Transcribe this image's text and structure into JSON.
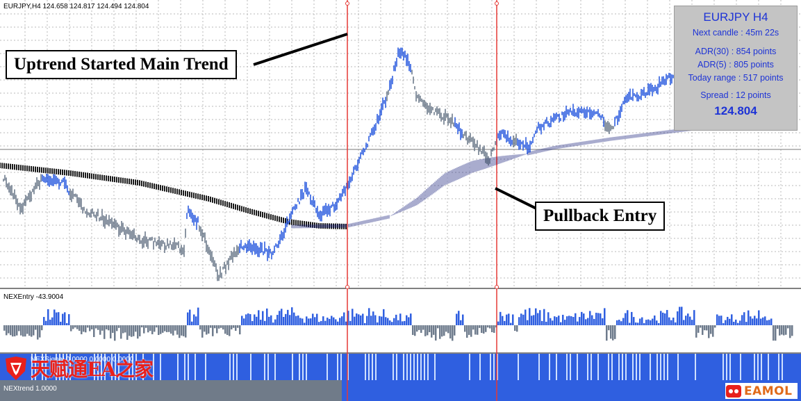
{
  "header": {
    "text": "EURJPY,H4  124.658 124.817 124.494 124.804"
  },
  "callouts": {
    "trend": "Uptrend Started Main Trend",
    "pullback": "Pullback Entry"
  },
  "info_panel": {
    "title": "EURJPY H4",
    "next_candle": "Next candle : 45m 22s",
    "adr30": "ADR(30) : 854 points",
    "adr5": "ADR(5) : 805 points",
    "today_range": "Today range : 517 points",
    "spread": "Spread : 12 points",
    "price": "124.804"
  },
  "subwindows": {
    "nexentry_label": "NEXEntry -43.9004",
    "nextrend_label": "NEXtrend  1.0000",
    "strip_label": "NEXSignal 0.0000 0.0000 0.0000"
  },
  "logos": {
    "cn_text": "天赋通EA之家",
    "en_text": "EAMOL"
  },
  "colors": {
    "bull": "#2f5fe0",
    "bear": "#6e7b8c",
    "signal_line": "#e53935",
    "ma_fast": "#1a1a1a",
    "ma_slow": "#1a237e",
    "panel_text": "#1d33d6"
  }
}
